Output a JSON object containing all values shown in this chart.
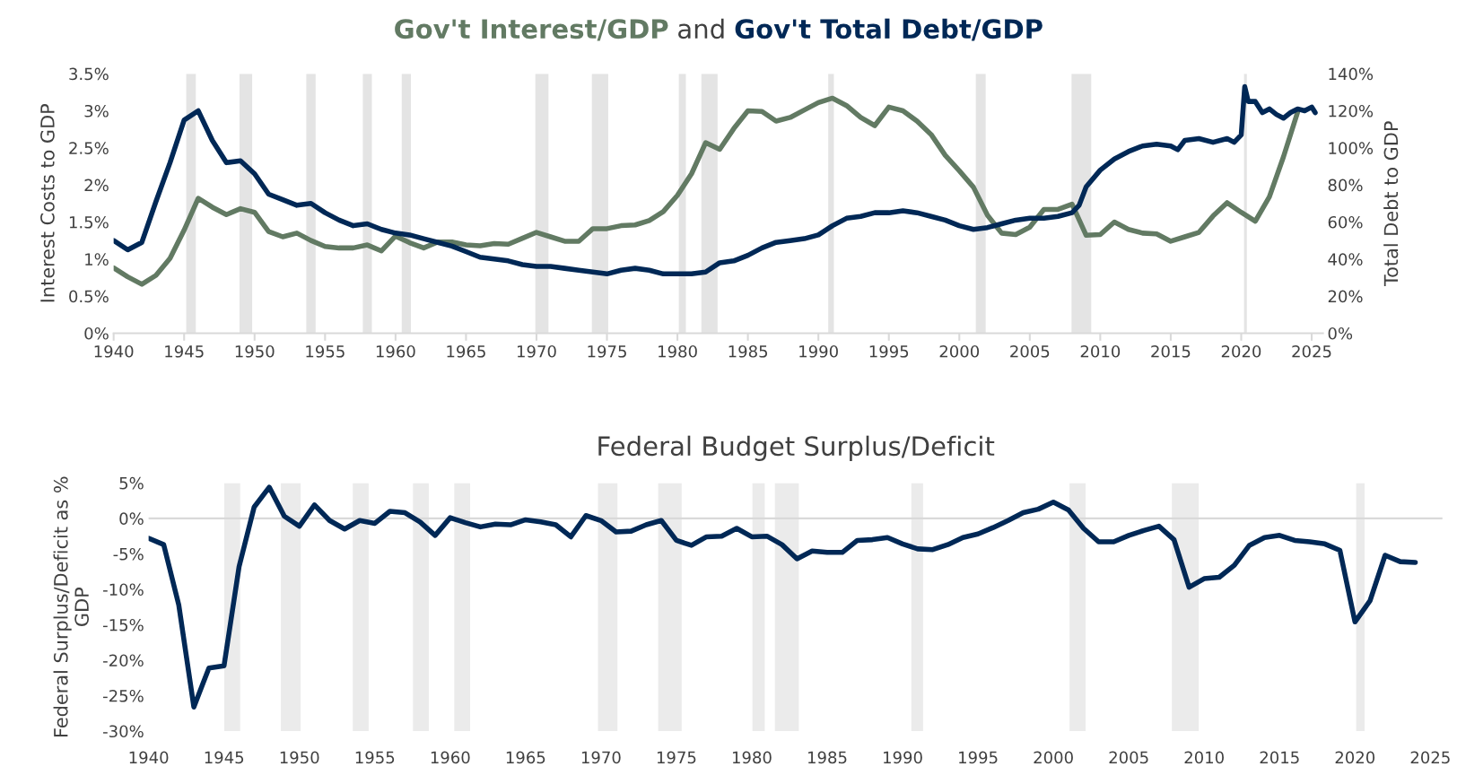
{
  "chart_data": [
    {
      "type": "line",
      "title": "and",
      "ylabel": "Interest Costs to GDP",
      "y2label": "Total Debt to GDP",
      "xlim": [
        1940,
        2025.8
      ],
      "xticks": [
        1940,
        1945,
        1950,
        1955,
        1960,
        1965,
        1970,
        1975,
        1980,
        1985,
        1990,
        1995,
        2000,
        2005,
        2010,
        2015,
        2020,
        2025
      ],
      "ylim": [
        0,
        3.5
      ],
      "yticks": [
        {
          "value": 0,
          "label": "0%"
        },
        {
          "value": 0.5,
          "label": "0.5%"
        },
        {
          "value": 1,
          "label": "1%"
        },
        {
          "value": 1.5,
          "label": "1.5%"
        },
        {
          "value": 2,
          "label": "2%"
        },
        {
          "value": 2.5,
          "label": "2.5%"
        },
        {
          "value": 3,
          "label": "3%"
        },
        {
          "value": 3.5,
          "label": "3.5%"
        }
      ],
      "y2lim": [
        0,
        140
      ],
      "y2ticks": [
        {
          "value": 0,
          "label": "0%"
        },
        {
          "value": 20,
          "label": "20%"
        },
        {
          "value": 40,
          "label": "40%"
        },
        {
          "value": 60,
          "label": "60%"
        },
        {
          "value": 80,
          "label": "80%"
        },
        {
          "value": 100,
          "label": "100%"
        },
        {
          "value": 120,
          "label": "120%"
        },
        {
          "value": 140,
          "label": "140%"
        }
      ],
      "grid": false,
      "bands": [
        {
          "axis": "x",
          "from": 1945.15,
          "to": 1945.83,
          "color": "#e4e4e4"
        },
        {
          "axis": "x",
          "from": 1948.93,
          "to": 1949.83,
          "color": "#e4e4e4"
        },
        {
          "axis": "x",
          "from": 1953.67,
          "to": 1954.33,
          "color": "#e4e4e4"
        },
        {
          "axis": "x",
          "from": 1957.68,
          "to": 1958.32,
          "color": "#e4e4e4"
        },
        {
          "axis": "x",
          "from": 1960.44,
          "to": 1961.09,
          "color": "#e4e4e4"
        },
        {
          "axis": "x",
          "from": 1969.92,
          "to": 1970.85,
          "color": "#e4e4e4"
        },
        {
          "axis": "x",
          "from": 1973.93,
          "to": 1975.09,
          "color": "#e4e4e4"
        },
        {
          "axis": "x",
          "from": 1980.1,
          "to": 1980.6,
          "color": "#e4e4e4"
        },
        {
          "axis": "x",
          "from": 1981.7,
          "to": 1982.85,
          "color": "#e4e4e4"
        },
        {
          "axis": "x",
          "from": 1990.7,
          "to": 1991.1,
          "color": "#e4e4e4"
        },
        {
          "axis": "x",
          "from": 2001.17,
          "to": 2001.87,
          "color": "#e4e4e4"
        },
        {
          "axis": "x",
          "from": 2007.96,
          "to": 2009.36,
          "color": "#e4e4e4"
        },
        {
          "axis": "x",
          "from": 2020.2,
          "to": 2020.4,
          "color": "#e4e4e4"
        }
      ],
      "series": [
        {
          "name": "Gov't Interest/GDP",
          "color": "#627a63",
          "x": [
            1940,
            1941,
            1942,
            1943,
            1944,
            1945,
            1946,
            1947,
            1948,
            1949,
            1950,
            1951,
            1952,
            1953,
            1954,
            1955,
            1956,
            1957,
            1958,
            1959,
            1960,
            1961,
            1962,
            1963,
            1964,
            1965,
            1966,
            1967,
            1968,
            1969,
            1970,
            1971,
            1972,
            1973,
            1974,
            1975,
            1976,
            1977,
            1978,
            1979,
            1980,
            1981,
            1982,
            1983,
            1984,
            1985,
            1986,
            1987,
            1988,
            1989,
            1990,
            1991,
            1992,
            1993,
            1994,
            1995,
            1996,
            1997,
            1998,
            1999,
            2000,
            2001,
            2002,
            2003,
            2004,
            2005,
            2006,
            2007,
            2008,
            2009,
            2010,
            2011,
            2012,
            2013,
            2014,
            2015,
            2016,
            2017,
            2018,
            2019,
            2020,
            2021,
            2022,
            2023,
            2024
          ],
          "values": [
            0.88,
            0.76,
            0.66,
            0.78,
            1.01,
            1.39,
            1.82,
            1.7,
            1.6,
            1.68,
            1.63,
            1.37,
            1.3,
            1.35,
            1.25,
            1.17,
            1.15,
            1.15,
            1.19,
            1.11,
            1.31,
            1.22,
            1.15,
            1.23,
            1.23,
            1.19,
            1.18,
            1.21,
            1.2,
            1.28,
            1.36,
            1.3,
            1.24,
            1.24,
            1.41,
            1.41,
            1.45,
            1.46,
            1.52,
            1.64,
            1.86,
            2.15,
            2.57,
            2.48,
            2.76,
            3.0,
            2.99,
            2.86,
            2.91,
            3.01,
            3.11,
            3.17,
            3.07,
            2.91,
            2.8,
            3.05,
            3.0,
            2.86,
            2.68,
            2.4,
            2.19,
            1.97,
            1.59,
            1.35,
            1.33,
            1.43,
            1.67,
            1.67,
            1.74,
            1.32,
            1.33,
            1.5,
            1.4,
            1.35,
            1.34,
            1.24,
            1.3,
            1.36,
            1.58,
            1.76,
            1.63,
            1.51,
            1.84,
            2.38,
            2.98
          ]
        },
        {
          "name": "Gov't Total Debt/GDP",
          "color": "#002856",
          "axis": "y2",
          "x": [
            1940,
            1941,
            1942,
            1943,
            1944,
            1945,
            1946,
            1947,
            1948,
            1949,
            1950,
            1951,
            1952,
            1953,
            1954,
            1955,
            1956,
            1957,
            1958,
            1959,
            1960,
            1961,
            1962,
            1963,
            1964,
            1965,
            1966,
            1967,
            1968,
            1969,
            1970,
            1971,
            1972,
            1973,
            1974,
            1975,
            1976,
            1977,
            1978,
            1979,
            1980,
            1981,
            1982,
            1983,
            1984,
            1985,
            1986,
            1987,
            1988,
            1989,
            1990,
            1991,
            1992,
            1993,
            1994,
            1995,
            1996,
            1997,
            1998,
            1999,
            2000,
            2001,
            2002,
            2003,
            2004,
            2005,
            2006,
            2007,
            2008,
            2008.5,
            2009,
            2010,
            2011,
            2012,
            2013,
            2014,
            2015,
            2015.5,
            2016,
            2017,
            2018,
            2019,
            2019.5,
            2020,
            2020.25,
            2020.5,
            2021,
            2021.5,
            2022,
            2022.5,
            2023,
            2023.5,
            2024,
            2024.5,
            2025,
            2025.25
          ],
          "values": [
            50,
            45,
            49,
            71,
            92,
            115,
            120,
            104,
            92,
            93,
            86,
            75,
            72,
            69,
            70,
            65,
            61,
            58,
            59,
            56,
            54,
            53,
            51,
            49,
            47,
            44,
            41,
            40,
            39,
            37,
            36,
            36,
            35,
            34,
            33,
            32,
            34,
            35,
            34,
            32,
            32,
            32,
            33,
            38,
            39,
            42,
            46,
            49,
            50,
            51,
            53,
            58,
            62,
            63,
            65,
            65,
            66,
            65,
            63,
            61,
            58,
            56,
            57,
            59,
            61,
            62,
            62,
            63,
            65,
            69,
            79,
            88,
            94,
            98,
            101,
            102,
            101,
            99,
            104,
            105,
            103,
            105,
            103,
            107,
            133,
            125,
            125,
            119,
            121,
            118,
            116,
            119,
            121,
            120,
            122,
            119
          ]
        }
      ]
    },
    {
      "type": "line",
      "title": "Federal Budget Surplus/Deficit",
      "ylabel": "Federal Surplus/Deficit as %\nGDP",
      "xlim": [
        1940,
        2025.8
      ],
      "xticks": [
        1940,
        1945,
        1950,
        1955,
        1960,
        1965,
        1970,
        1975,
        1980,
        1985,
        1990,
        1995,
        2000,
        2005,
        2010,
        2015,
        2020,
        2025
      ],
      "ylim": [
        -30,
        5
      ],
      "yticks": [
        {
          "value": 5,
          "label": "5%"
        },
        {
          "value": 0,
          "label": "0%"
        },
        {
          "value": -5,
          "label": "-5%"
        },
        {
          "value": -10,
          "label": "-10%"
        },
        {
          "value": -15,
          "label": "-15%"
        },
        {
          "value": -20,
          "label": "-20%"
        },
        {
          "value": -25,
          "label": "-25%"
        },
        {
          "value": -30,
          "label": "-30%"
        }
      ],
      "grid": false,
      "ref_lines": [
        {
          "axis": "y",
          "value": 0,
          "color": "#d9d9d9"
        }
      ],
      "bands": [
        {
          "axis": "x",
          "from": 1945.02,
          "to": 1946.07,
          "color": "#ebebeb"
        },
        {
          "axis": "x",
          "from": 1948.77,
          "to": 1950.08,
          "color": "#ebebeb"
        },
        {
          "axis": "x",
          "from": 1953.54,
          "to": 1954.59,
          "color": "#ebebeb"
        },
        {
          "axis": "x",
          "from": 1957.53,
          "to": 1958.58,
          "color": "#ebebeb"
        },
        {
          "axis": "x",
          "from": 1960.27,
          "to": 1961.32,
          "color": "#ebebeb"
        },
        {
          "axis": "x",
          "from": 1969.8,
          "to": 1971.09,
          "color": "#ebebeb"
        },
        {
          "axis": "x",
          "from": 1973.79,
          "to": 1975.35,
          "color": "#ebebeb"
        },
        {
          "axis": "x",
          "from": 1980.04,
          "to": 1980.86,
          "color": "#ebebeb"
        },
        {
          "axis": "x",
          "from": 1981.53,
          "to": 1983.12,
          "color": "#ebebeb"
        },
        {
          "axis": "x",
          "from": 1990.58,
          "to": 1991.36,
          "color": "#ebebeb"
        },
        {
          "axis": "x",
          "from": 2001.07,
          "to": 2002.14,
          "color": "#ebebeb"
        },
        {
          "axis": "x",
          "from": 2007.86,
          "to": 2009.64,
          "color": "#ebebeb"
        },
        {
          "axis": "x",
          "from": 2020.08,
          "to": 2020.64,
          "color": "#ebebeb"
        }
      ],
      "series": [
        {
          "color": "#002856",
          "x": [
            1940,
            1941,
            1942,
            1943,
            1944,
            1945,
            1946,
            1947,
            1948,
            1949,
            1950,
            1951,
            1952,
            1953,
            1954,
            1955,
            1956,
            1957,
            1958,
            1959,
            1960,
            1961,
            1962,
            1963,
            1964,
            1965,
            1966,
            1967,
            1968,
            1969,
            1970,
            1971,
            1972,
            1973,
            1974,
            1975,
            1976,
            1977,
            1978,
            1979,
            1980,
            1981,
            1982,
            1983,
            1984,
            1985,
            1986,
            1987,
            1988,
            1989,
            1990,
            1991,
            1992,
            1993,
            1994,
            1995,
            1996,
            1997,
            1998,
            1999,
            2000,
            2001,
            2002,
            2003,
            2004,
            2005,
            2006,
            2007,
            2008,
            2009,
            2010,
            2011,
            2012,
            2013,
            2014,
            2015,
            2016,
            2017,
            2018,
            2019,
            2020,
            2021,
            2022,
            2023,
            2024
          ],
          "values": [
            -2.8,
            -3.7,
            -12.2,
            -26.6,
            -21.1,
            -20.8,
            -6.8,
            1.6,
            4.4,
            0.3,
            -1.1,
            1.9,
            -0.3,
            -1.5,
            -0.3,
            -0.7,
            1.0,
            0.8,
            -0.5,
            -2.4,
            0.1,
            -0.6,
            -1.2,
            -0.8,
            -0.9,
            -0.2,
            -0.5,
            -0.9,
            -2.6,
            0.4,
            -0.3,
            -1.9,
            -1.8,
            -0.9,
            -0.3,
            -3.1,
            -3.8,
            -2.6,
            -2.5,
            -1.4,
            -2.6,
            -2.5,
            -3.7,
            -5.7,
            -4.6,
            -4.8,
            -4.8,
            -3.1,
            -3.0,
            -2.7,
            -3.6,
            -4.3,
            -4.4,
            -3.7,
            -2.7,
            -2.2,
            -1.3,
            -0.3,
            0.8,
            1.3,
            2.3,
            1.2,
            -1.4,
            -3.3,
            -3.3,
            -2.4,
            -1.7,
            -1.1,
            -3.0,
            -9.7,
            -8.5,
            -8.3,
            -6.6,
            -3.8,
            -2.7,
            -2.4,
            -3.1,
            -3.3,
            -3.6,
            -4.5,
            -14.6,
            -11.6,
            -5.2,
            -6.1,
            -6.2
          ]
        }
      ]
    }
  ]
}
